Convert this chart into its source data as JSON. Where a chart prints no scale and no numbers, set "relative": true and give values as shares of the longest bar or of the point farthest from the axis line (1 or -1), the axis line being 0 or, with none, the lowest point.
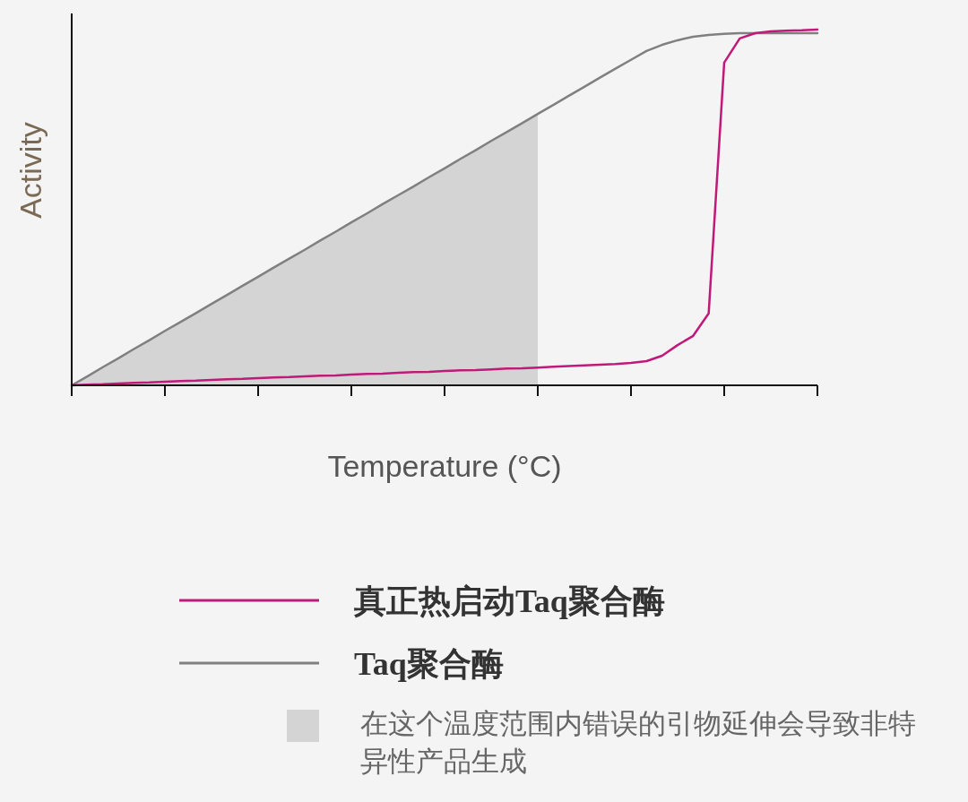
{
  "chart_data": {
    "type": "line",
    "xlabel": "Temperature (°C)",
    "ylabel": "Activity",
    "relative": true,
    "legend": "bottom",
    "categories": [
      null,
      null,
      null,
      null,
      null,
      null,
      null,
      null,
      null,
      null,
      null,
      null,
      null,
      null,
      null,
      null,
      null,
      null,
      null,
      null,
      null,
      null,
      null,
      null,
      null,
      null,
      null,
      null,
      null,
      null,
      null,
      null,
      null,
      null,
      null,
      null,
      null,
      null,
      null,
      null,
      null,
      null,
      null,
      null,
      null,
      null,
      null,
      null,
      null
    ],
    "series": [
      {
        "name": "真正热启动Taq聚合酶",
        "color": "#c0197a",
        "values": [
          0,
          0.002,
          0.003,
          0.005,
          0.007,
          0.008,
          0.01,
          0.012,
          0.013,
          0.015,
          0.017,
          0.018,
          0.02,
          0.022,
          0.023,
          0.025,
          0.027,
          0.028,
          0.03,
          0.032,
          0.033,
          0.035,
          0.037,
          0.038,
          0.04,
          0.042,
          0.043,
          0.045,
          0.047,
          0.048,
          0.05,
          0.052,
          0.054,
          0.056,
          0.058,
          0.06,
          0.063,
          0.068,
          0.083,
          0.113,
          0.139,
          0.202,
          0.907,
          0.975,
          0.99,
          0.995,
          0.997,
          0.998,
          1
        ]
      },
      {
        "name": "Taq聚合酶",
        "color": "#808080",
        "values": [
          0,
          0.025,
          0.051,
          0.076,
          0.102,
          0.127,
          0.153,
          0.178,
          0.203,
          0.229,
          0.254,
          0.28,
          0.305,
          0.331,
          0.356,
          0.381,
          0.407,
          0.432,
          0.458,
          0.483,
          0.509,
          0.534,
          0.559,
          0.585,
          0.61,
          0.636,
          0.661,
          0.687,
          0.712,
          0.737,
          0.763,
          0.788,
          0.814,
          0.839,
          0.865,
          0.89,
          0.915,
          0.94,
          0.957,
          0.97,
          0.98,
          0.985,
          0.988,
          0.99,
          0.99,
          0.99,
          0.99,
          0.99,
          0.99
        ]
      },
      {
        "name": "在这个温度范围内错误的引物延伸会导致非特异性产品生成",
        "type": "area",
        "color": "#d4d4d4",
        "values": [
          0,
          0.025,
          0.051,
          0.076,
          0.102,
          0.127,
          0.153,
          0.178,
          0.203,
          0.229,
          0.254,
          0.28,
          0.305,
          0.331,
          0.356,
          0.381,
          0.407,
          0.432,
          0.458,
          0.483,
          0.509,
          0.534,
          0.559,
          0.585,
          0.61,
          0.636,
          0.661,
          0.687,
          0.712,
          0.737,
          0.763,
          null,
          null,
          null,
          null,
          null,
          null,
          null,
          null,
          null,
          null,
          null,
          null,
          null,
          null,
          null,
          null,
          null,
          null
        ]
      }
    ]
  }
}
